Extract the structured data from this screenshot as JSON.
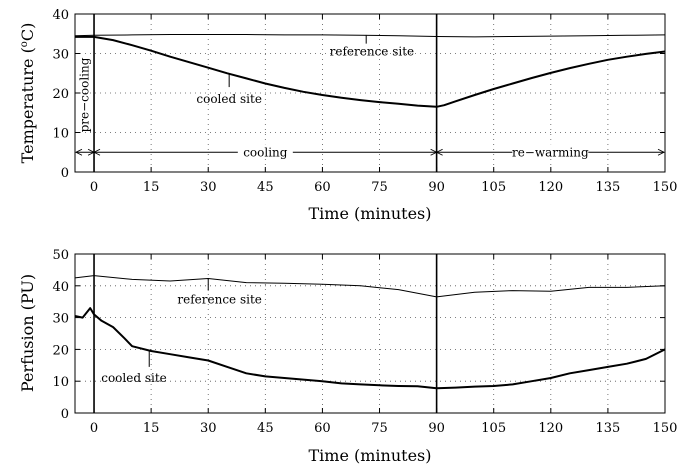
{
  "chart_data": [
    {
      "type": "line",
      "xlabel": "Time (minutes)",
      "ylabel": "Temperature (",
      "ylabel_sup": "o",
      "ylabel_tail": "C)",
      "xlim": [
        -5,
        150
      ],
      "ylim": [
        0,
        40
      ],
      "xticks": [
        0,
        15,
        30,
        45,
        60,
        75,
        90,
        105,
        120,
        135,
        150
      ],
      "yticks": [
        0,
        10,
        20,
        30,
        40
      ],
      "grid": true,
      "vlines": [
        0,
        90
      ],
      "series": [
        {
          "name": "reference site",
          "x": [
            -5,
            0,
            10,
            20,
            30,
            40,
            50,
            60,
            70,
            80,
            90,
            100,
            110,
            120,
            130,
            140,
            150
          ],
          "values": [
            34.5,
            34.6,
            34.7,
            34.8,
            34.8,
            34.8,
            34.7,
            34.7,
            34.6,
            34.5,
            34.3,
            34.2,
            34.3,
            34.4,
            34.5,
            34.6,
            34.7
          ]
        },
        {
          "name": "cooled site",
          "x": [
            -5,
            0,
            5,
            10,
            15,
            20,
            25,
            30,
            35,
            40,
            45,
            50,
            55,
            60,
            65,
            70,
            75,
            80,
            85,
            90,
            92,
            95,
            100,
            105,
            110,
            115,
            120,
            125,
            130,
            135,
            140,
            145,
            150
          ],
          "values": [
            34.2,
            34.2,
            33.4,
            32.1,
            30.7,
            29.2,
            27.8,
            26.4,
            25.0,
            23.7,
            22.4,
            21.3,
            20.3,
            19.5,
            18.8,
            18.2,
            17.7,
            17.3,
            16.8,
            16.5,
            16.9,
            17.9,
            19.5,
            21.0,
            22.4,
            23.8,
            25.1,
            26.3,
            27.4,
            28.4,
            29.2,
            29.9,
            30.5
          ]
        }
      ],
      "annotations": {
        "reference_site": "reference site",
        "cooled_site": "cooled site",
        "pre_cooling": "pre−cooling",
        "cooling": "cooling",
        "re_warming": "re−warming"
      },
      "phase_arrow_y": 5
    },
    {
      "type": "line",
      "xlabel": "Time (minutes)",
      "ylabel": "Perfusion (PU)",
      "xlim": [
        -5,
        150
      ],
      "ylim": [
        0,
        50
      ],
      "xticks": [
        0,
        15,
        30,
        45,
        60,
        75,
        90,
        105,
        120,
        135,
        150
      ],
      "yticks": [
        0,
        10,
        20,
        30,
        40,
        50
      ],
      "grid": true,
      "vlines": [
        0,
        90
      ],
      "series": [
        {
          "name": "reference site",
          "x": [
            -5,
            0,
            10,
            20,
            30,
            40,
            50,
            60,
            70,
            80,
            90,
            100,
            110,
            120,
            130,
            140,
            150
          ],
          "values": [
            42.5,
            43.2,
            42.0,
            41.5,
            42.3,
            41.0,
            40.8,
            40.5,
            40.0,
            38.8,
            36.5,
            38.0,
            38.5,
            38.3,
            39.5,
            39.5,
            40.0
          ]
        },
        {
          "name": "cooled site",
          "x": [
            -5,
            -3,
            -1,
            0,
            2,
            5,
            8,
            10,
            15,
            20,
            25,
            30,
            35,
            40,
            45,
            50,
            55,
            60,
            65,
            70,
            75,
            80,
            85,
            90,
            95,
            100,
            105,
            110,
            115,
            120,
            125,
            130,
            135,
            140,
            145,
            150
          ],
          "values": [
            30.5,
            30.0,
            33.0,
            31.0,
            29.0,
            27.0,
            23.5,
            21.0,
            19.5,
            18.5,
            17.5,
            16.5,
            14.5,
            12.5,
            11.5,
            11.0,
            10.5,
            10.0,
            9.3,
            9.0,
            8.7,
            8.5,
            8.4,
            7.8,
            8.0,
            8.3,
            8.5,
            9.0,
            10.0,
            11.0,
            12.5,
            13.5,
            14.5,
            15.5,
            17.0,
            20.0
          ]
        }
      ],
      "annotations": {
        "reference_site": "reference site",
        "cooled_site": "cooled site"
      }
    }
  ]
}
